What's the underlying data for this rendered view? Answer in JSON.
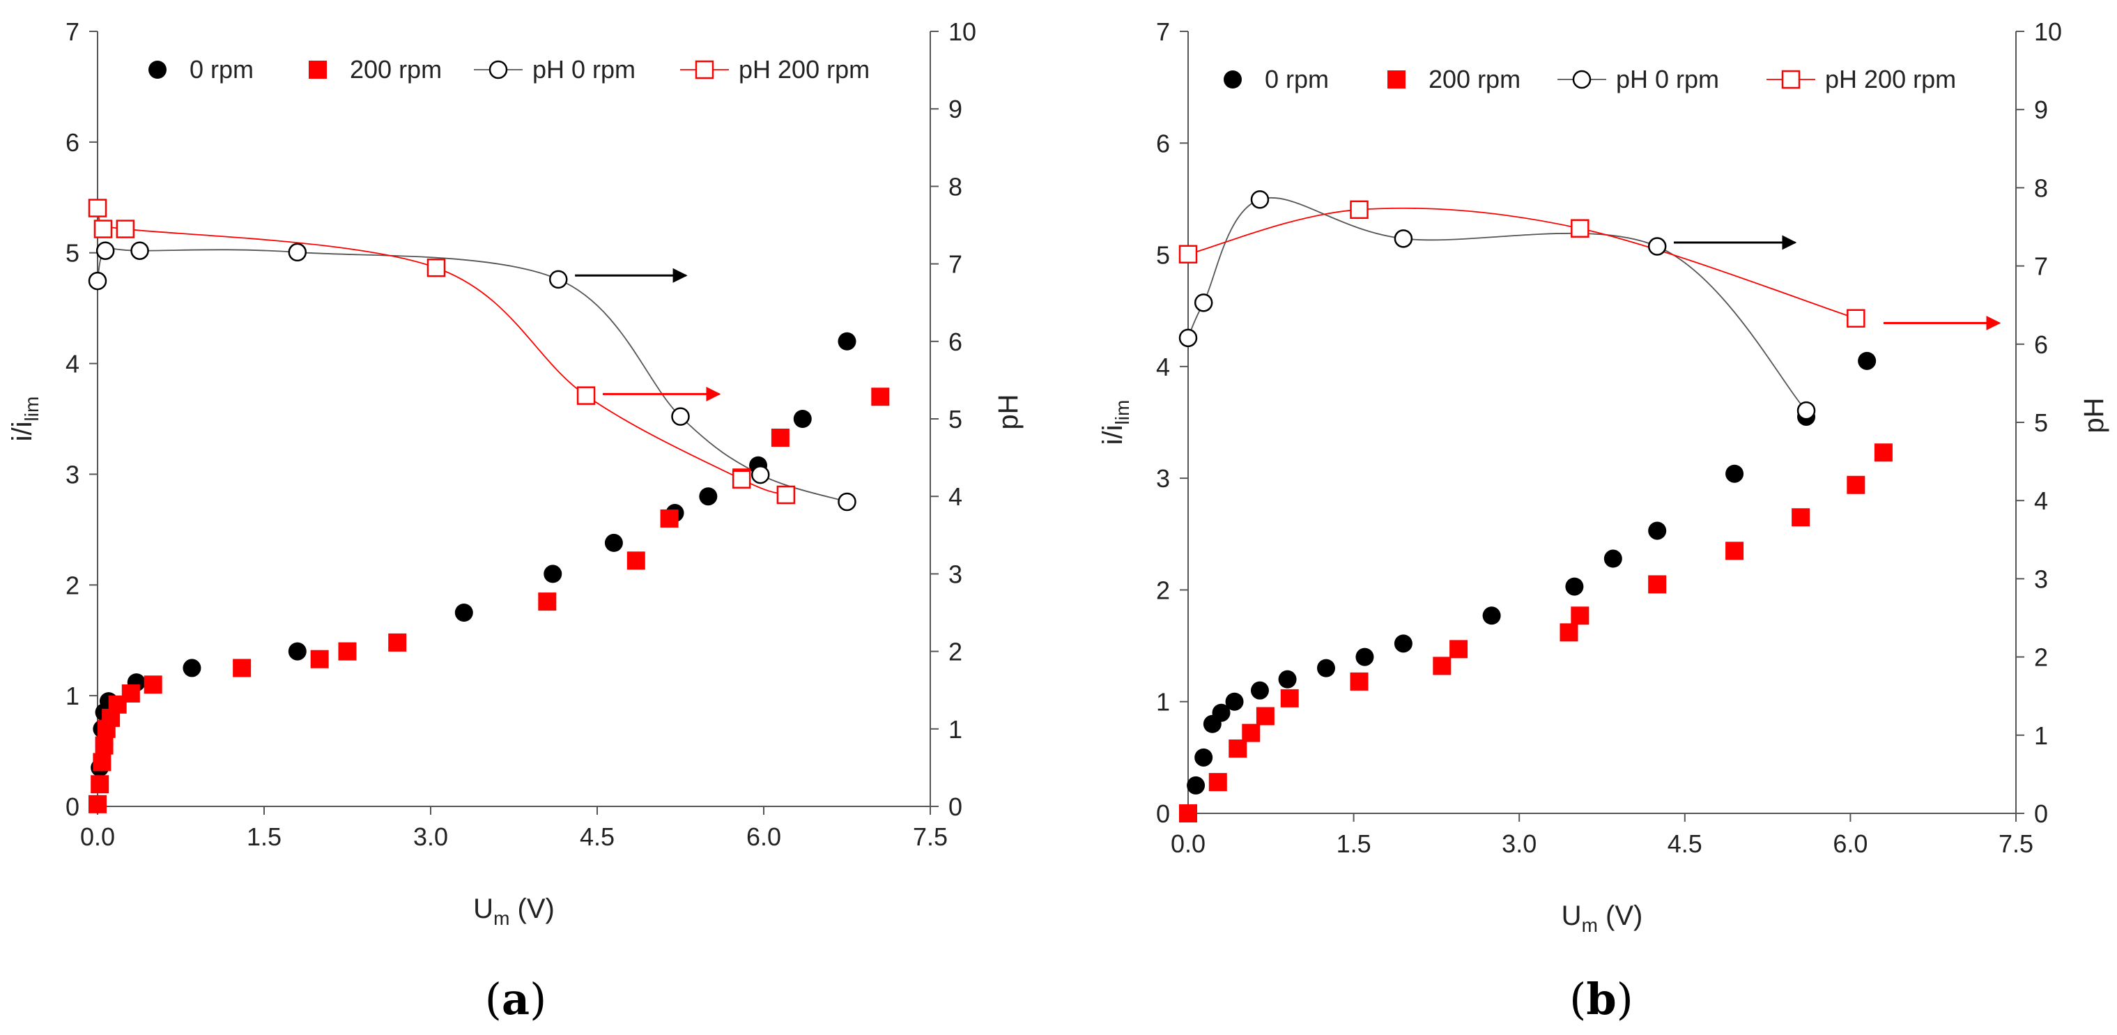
{
  "chart_data": [
    {
      "type": "scatter",
      "panel_label": "a",
      "xlabel": {
        "main": "U",
        "sub": "m",
        "rest": " (V)"
      },
      "ylabel": {
        "main": "i/i",
        "sub": "lim"
      },
      "y2label": "pH",
      "xlim": [
        0,
        7.5
      ],
      "ylim": [
        0,
        7
      ],
      "y2lim": [
        0,
        10
      ],
      "x_ticks": [
        "0.0",
        "1.5",
        "3.0",
        "4.5",
        "6.0",
        "7.5"
      ],
      "y_ticks": [
        "0",
        "1",
        "2",
        "3",
        "4",
        "5",
        "6",
        "7"
      ],
      "y2_ticks": [
        "0",
        "1",
        "2",
        "3",
        "4",
        "5",
        "6",
        "7",
        "8",
        "9",
        "10"
      ],
      "legend": [
        "0 rpm",
        "200 rpm",
        "pH 0 rpm",
        "pH 200 rpm"
      ],
      "series": [
        {
          "name": "0 rpm",
          "axis": "left",
          "marker": "filled-circle",
          "color": "#000000",
          "x": [
            0.0,
            0.02,
            0.04,
            0.06,
            0.1,
            0.35,
            0.85,
            1.8,
            3.3,
            4.1,
            4.65,
            5.2,
            5.5,
            5.95,
            6.35,
            6.75
          ],
          "y": [
            0.02,
            0.35,
            0.7,
            0.85,
            0.95,
            1.12,
            1.25,
            1.4,
            1.75,
            2.1,
            2.38,
            2.65,
            2.8,
            3.08,
            3.5,
            4.2
          ]
        },
        {
          "name": "200 rpm",
          "axis": "left",
          "marker": "filled-square",
          "color": "#ff0000",
          "x": [
            0.0,
            0.02,
            0.04,
            0.06,
            0.08,
            0.12,
            0.18,
            0.3,
            0.5,
            1.3,
            2.0,
            2.25,
            2.7,
            4.05,
            4.85,
            5.15,
            5.8,
            6.15,
            7.05
          ],
          "y": [
            0.02,
            0.2,
            0.4,
            0.55,
            0.7,
            0.8,
            0.92,
            1.02,
            1.1,
            1.25,
            1.33,
            1.4,
            1.48,
            1.85,
            2.22,
            2.6,
            2.97,
            3.33,
            3.7
          ]
        },
        {
          "name": "pH 0 rpm",
          "axis": "right",
          "marker": "open-circle",
          "color": "#000000",
          "line": "#555555",
          "x": [
            0.0,
            0.07,
            0.38,
            1.8,
            4.15,
            5.25,
            5.97,
            6.75
          ],
          "y": [
            6.78,
            7.17,
            7.17,
            7.15,
            6.8,
            5.03,
            4.28,
            3.93
          ]
        },
        {
          "name": "pH 200 rpm",
          "axis": "right",
          "marker": "open-square",
          "color": "#ff0000",
          "line": "#ff0000",
          "x": [
            0.0,
            0.05,
            0.25,
            3.05,
            4.4,
            5.8,
            6.2
          ],
          "y": [
            7.72,
            7.45,
            7.45,
            6.95,
            5.3,
            4.22,
            4.02
          ]
        }
      ],
      "annotations": [
        {
          "type": "arrow",
          "color": "#000000",
          "axis": "right",
          "x1": 4.3,
          "x2": 5.3,
          "y": 6.85
        },
        {
          "type": "arrow",
          "color": "#ff0000",
          "axis": "right",
          "x1": 4.55,
          "x2": 5.6,
          "y": 5.32
        }
      ]
    },
    {
      "type": "scatter",
      "panel_label": "b",
      "xlabel": {
        "main": "U",
        "sub": "m",
        "rest": " (V)"
      },
      "ylabel": {
        "main": "i/i",
        "sub": "lim"
      },
      "y2label": "pH",
      "xlim": [
        0,
        7.5
      ],
      "ylim": [
        0,
        7
      ],
      "y2lim": [
        0,
        10
      ],
      "x_ticks": [
        "0.0",
        "1.5",
        "3.0",
        "4.5",
        "6.0",
        "7.5"
      ],
      "y_ticks": [
        "0",
        "1",
        "2",
        "3",
        "4",
        "5",
        "6",
        "7"
      ],
      "y2_ticks": [
        "0",
        "1",
        "2",
        "3",
        "4",
        "5",
        "6",
        "7",
        "8",
        "9",
        "10"
      ],
      "legend": [
        "0 rpm",
        "200 rpm",
        "pH 0 rpm",
        "pH 200 rpm"
      ],
      "series": [
        {
          "name": "0 rpm",
          "axis": "left",
          "marker": "filled-circle",
          "color": "#000000",
          "x": [
            0.07,
            0.14,
            0.22,
            0.3,
            0.42,
            0.65,
            0.9,
            1.25,
            1.6,
            1.95,
            2.75,
            3.5,
            3.85,
            4.25,
            4.95,
            5.6,
            6.15
          ],
          "y": [
            0.25,
            0.5,
            0.8,
            0.9,
            1.0,
            1.1,
            1.2,
            1.3,
            1.4,
            1.52,
            1.77,
            2.03,
            2.28,
            2.53,
            3.04,
            3.55,
            4.05
          ]
        },
        {
          "name": "200 rpm",
          "axis": "left",
          "marker": "filled-square",
          "color": "#ff0000",
          "x": [
            0.0,
            0.27,
            0.45,
            0.57,
            0.7,
            0.92,
            1.55,
            2.3,
            2.45,
            3.45,
            3.55,
            4.25,
            4.95,
            5.55,
            6.05,
            6.3
          ],
          "y": [
            0.0,
            0.28,
            0.58,
            0.72,
            0.87,
            1.03,
            1.18,
            1.32,
            1.47,
            1.62,
            1.77,
            2.05,
            2.35,
            2.65,
            2.94,
            3.23
          ]
        },
        {
          "name": "pH 0 rpm",
          "axis": "right",
          "marker": "open-circle",
          "color": "#000000",
          "line": "#555555",
          "x": [
            0.0,
            0.14,
            0.65,
            1.95,
            4.25,
            5.6
          ],
          "y": [
            6.08,
            6.53,
            7.85,
            7.35,
            7.25,
            5.15
          ]
        },
        {
          "name": "pH 200 rpm",
          "axis": "right",
          "marker": "open-square",
          "color": "#ff0000",
          "line": "#ff0000",
          "x": [
            0.0,
            1.55,
            3.55,
            6.05
          ],
          "y": [
            7.15,
            7.72,
            7.48,
            6.33
          ]
        }
      ],
      "annotations": [
        {
          "type": "arrow",
          "color": "#000000",
          "axis": "right",
          "x1": 4.4,
          "x2": 5.5,
          "y": 7.3
        },
        {
          "type": "arrow",
          "color": "#ff0000",
          "axis": "right",
          "x1": 6.3,
          "x2": 7.35,
          "y": 6.27
        }
      ]
    }
  ]
}
